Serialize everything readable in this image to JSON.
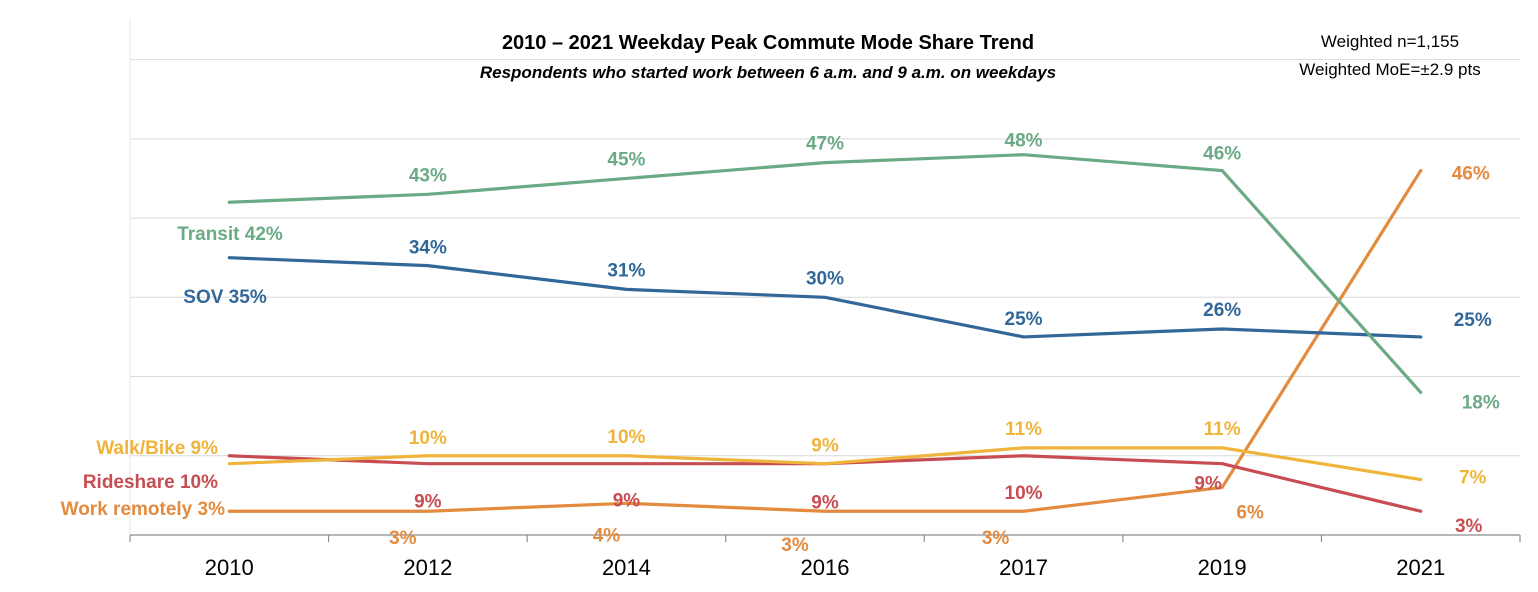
{
  "chart_data": {
    "type": "line",
    "title": "2010 – 2021 Weekday Peak Commute Mode Share Trend",
    "subtitle": "Respondents who started work between 6 a.m. and 9 a.m. on weekdays",
    "notes": [
      "Weighted n=1,155",
      "Weighted MoE=±2.9 pts"
    ],
    "categories": [
      "2010",
      "2012",
      "2014",
      "2016",
      "2017",
      "2019",
      "2021"
    ],
    "ylim": [
      0,
      65
    ],
    "grid": true,
    "series": [
      {
        "name": "Transit",
        "start_label": "Transit 42%",
        "color": "#6aaa85",
        "values": [
          42,
          43,
          45,
          47,
          48,
          46,
          18
        ],
        "labels": [
          "",
          "43%",
          "45%",
          "47%",
          "48%",
          "46%",
          "18%"
        ]
      },
      {
        "name": "SOV",
        "start_label": "SOV 35%",
        "color": "#32679a",
        "values": [
          35,
          34,
          31,
          30,
          25,
          26,
          25
        ],
        "labels": [
          "",
          "34%",
          "31%",
          "30%",
          "25%",
          "26%",
          "25%"
        ]
      },
      {
        "name": "Walk/Bike",
        "start_label": "Walk/Bike 9%",
        "color": "#efb43c",
        "values": [
          9,
          10,
          10,
          9,
          11,
          11,
          7
        ],
        "labels": [
          "",
          "10%",
          "10%",
          "9%",
          "11%",
          "11%",
          "7%"
        ]
      },
      {
        "name": "Rideshare",
        "start_label": "Rideshare 10%",
        "color": "#c84d52",
        "values": [
          10,
          9,
          9,
          9,
          10,
          9,
          3
        ],
        "labels": [
          "",
          "9%",
          "9%",
          "9%",
          "10%",
          "9%",
          "3%"
        ]
      },
      {
        "name": "Work  remotely",
        "start_label": "Work  remotely 3%",
        "color": "#e38b3f",
        "values": [
          3,
          3,
          4,
          3,
          3,
          6,
          46
        ],
        "labels": [
          "",
          "3%",
          "4%",
          "3%",
          "3%",
          "6%",
          "46%"
        ]
      }
    ]
  }
}
